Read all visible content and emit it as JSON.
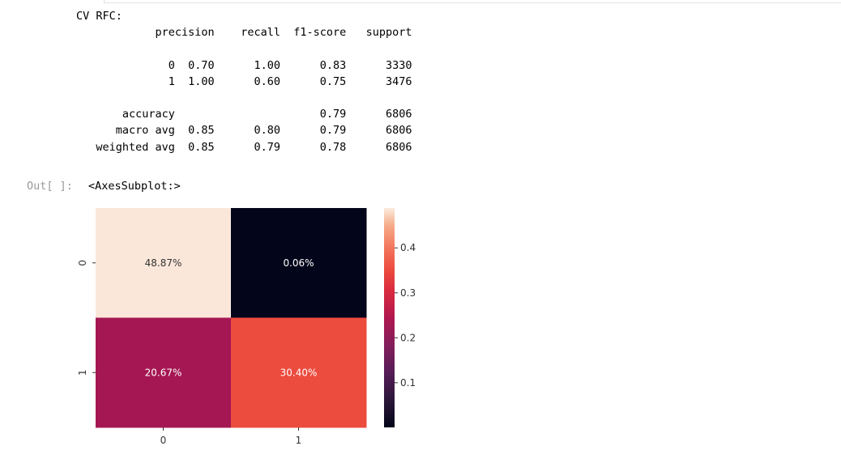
{
  "report": {
    "title": "CV RFC:",
    "headers": [
      "precision",
      "recall",
      "f1-score",
      "support"
    ],
    "class_rows": [
      {
        "label": "0",
        "precision": "0.70",
        "recall": "1.00",
        "f1": "0.83",
        "support": "3330"
      },
      {
        "label": "1",
        "precision": "1.00",
        "recall": "0.60",
        "f1": "0.75",
        "support": "3476"
      }
    ],
    "summary_rows": [
      {
        "label": "accuracy",
        "precision": "",
        "recall": "",
        "f1": "0.79",
        "support": "6806"
      },
      {
        "label": "macro avg",
        "precision": "0.85",
        "recall": "0.80",
        "f1": "0.79",
        "support": "6806"
      },
      {
        "label": "weighted avg",
        "precision": "0.85",
        "recall": "0.79",
        "f1": "0.78",
        "support": "6806"
      }
    ]
  },
  "output": {
    "prompt": "Out[ ]:",
    "text": "<AxesSubplot:>"
  },
  "chart_data": {
    "type": "heatmap",
    "title": "",
    "xlabel": "",
    "ylabel": "",
    "x_tick_labels": [
      "0",
      "1"
    ],
    "y_tick_labels": [
      "0",
      "1"
    ],
    "values": [
      [
        0.4887,
        0.0006
      ],
      [
        0.2067,
        0.304
      ]
    ],
    "annotations": [
      [
        "48.87%",
        "0.06%"
      ],
      [
        "20.67%",
        "30.40%"
      ]
    ],
    "cell_colors": [
      [
        "#fae7d9",
        "#03051a"
      ],
      [
        "#a51753",
        "#ec4c3e"
      ]
    ],
    "annotation_colors": [
      [
        "#333333",
        "#ffffff"
      ],
      [
        "#ffffff",
        "#ffffff"
      ]
    ],
    "colorbar": {
      "colormap": "rocket",
      "range": [
        0.0006,
        0.4887
      ],
      "ticks": [
        0.1,
        0.2,
        0.3,
        0.4
      ],
      "tick_labels": [
        "0.1",
        "0.2",
        "0.3",
        "0.4"
      ]
    }
  }
}
